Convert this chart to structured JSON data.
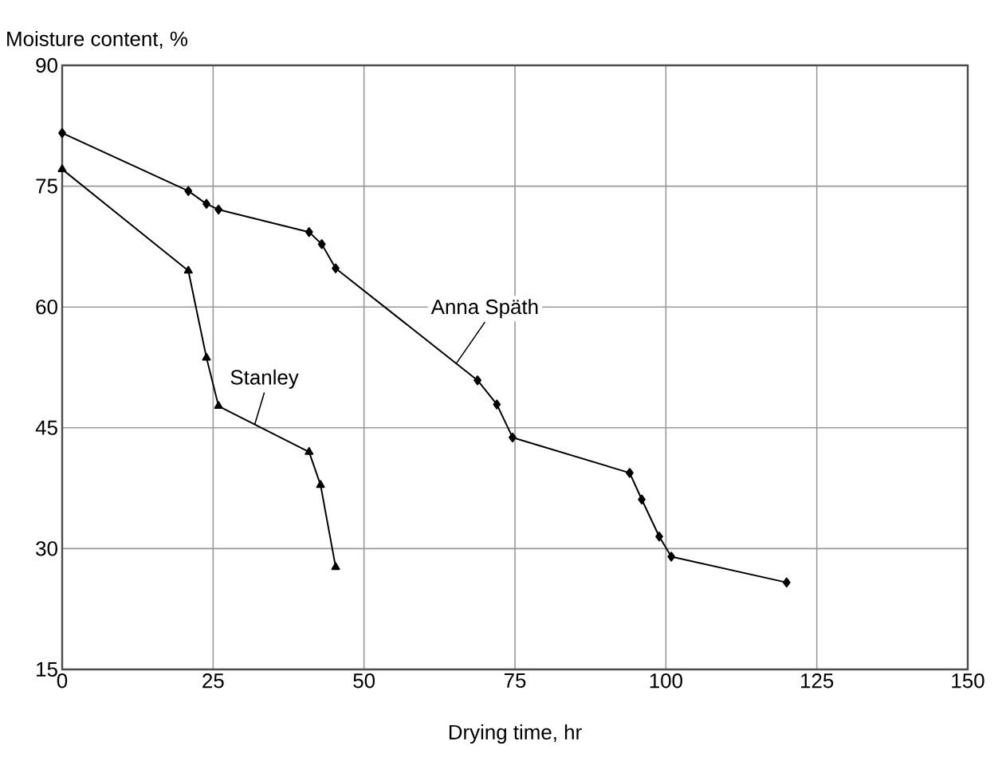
{
  "chart_data": {
    "type": "line",
    "ylabel": "Moisture content, %",
    "xlabel": "Drying time, hr",
    "xlim": [
      0,
      150
    ],
    "xticks": [
      0,
      25,
      50,
      75,
      100,
      125,
      150
    ],
    "ylim": [
      15,
      90
    ],
    "yticks": [
      15,
      30,
      45,
      60,
      75,
      90
    ],
    "grid": true,
    "legend": false,
    "line_style": "solid",
    "series": [
      {
        "name": "Anna Späth",
        "color": "#000000",
        "marker": "diamond",
        "x": [
          0,
          20.9,
          23.9,
          25.9,
          40.9,
          43,
          45.3,
          68.8,
          72,
          74.6,
          94,
          96,
          98.9,
          100.9,
          120
        ],
        "values": [
          81.6,
          74.4,
          72.8,
          72.1,
          69.3,
          67.8,
          64.8,
          50.9,
          47.9,
          43.8,
          39.4,
          36.1,
          31.5,
          29,
          25.8
        ]
      },
      {
        "name": "Stanley",
        "color": "#000000",
        "marker": "triangle",
        "x": [
          0,
          20.9,
          23.9,
          25.9,
          40.9,
          42.8,
          45.3
        ],
        "values": [
          77.1,
          64.5,
          53.7,
          47.7,
          42,
          37.9,
          27.7
        ]
      }
    ]
  }
}
